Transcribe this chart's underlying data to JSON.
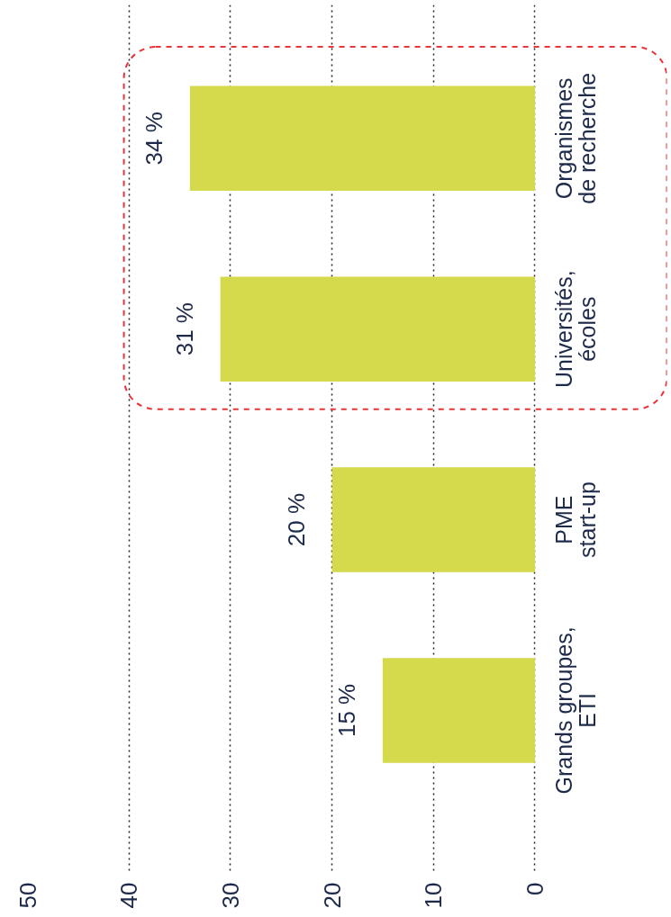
{
  "chart_data": {
    "type": "bar",
    "orientation": "horizontal",
    "categories": [
      "Organismes\nde recherche",
      "Universités,\nécoles",
      "PME\nstart-up",
      "Grands groupes,\nETI"
    ],
    "values": [
      34,
      31,
      20,
      15
    ],
    "value_labels": [
      "34 %",
      "31 %",
      "20 %",
      "15 %"
    ],
    "color": "#d5d94c",
    "xlim": [
      50,
      -13
    ],
    "xticks": [
      0,
      10,
      20,
      30,
      40,
      50
    ],
    "grid": "x"
  }
}
